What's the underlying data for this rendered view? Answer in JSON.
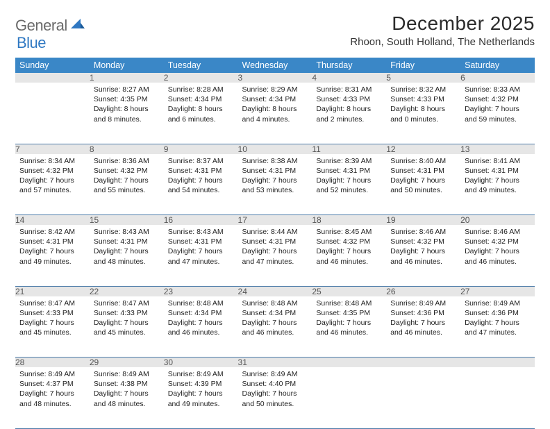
{
  "logo": {
    "word1": "General",
    "word2": "Blue"
  },
  "title": "December 2025",
  "location": "Rhoon, South Holland, The Netherlands",
  "colors": {
    "header_bg": "#3a87c7",
    "daynum_bg": "#e6e6e6",
    "row_divider": "#4a7aa8",
    "logo_gray": "#6a6a6a",
    "logo_blue": "#2f78c2"
  },
  "weekdays": [
    "Sunday",
    "Monday",
    "Tuesday",
    "Wednesday",
    "Thursday",
    "Friday",
    "Saturday"
  ],
  "weeks": [
    [
      null,
      {
        "n": "1",
        "sr": "8:27 AM",
        "ss": "4:35 PM",
        "dl": "8 hours and 8 minutes."
      },
      {
        "n": "2",
        "sr": "8:28 AM",
        "ss": "4:34 PM",
        "dl": "8 hours and 6 minutes."
      },
      {
        "n": "3",
        "sr": "8:29 AM",
        "ss": "4:34 PM",
        "dl": "8 hours and 4 minutes."
      },
      {
        "n": "4",
        "sr": "8:31 AM",
        "ss": "4:33 PM",
        "dl": "8 hours and 2 minutes."
      },
      {
        "n": "5",
        "sr": "8:32 AM",
        "ss": "4:33 PM",
        "dl": "8 hours and 0 minutes."
      },
      {
        "n": "6",
        "sr": "8:33 AM",
        "ss": "4:32 PM",
        "dl": "7 hours and 59 minutes."
      }
    ],
    [
      {
        "n": "7",
        "sr": "8:34 AM",
        "ss": "4:32 PM",
        "dl": "7 hours and 57 minutes."
      },
      {
        "n": "8",
        "sr": "8:36 AM",
        "ss": "4:32 PM",
        "dl": "7 hours and 55 minutes."
      },
      {
        "n": "9",
        "sr": "8:37 AM",
        "ss": "4:31 PM",
        "dl": "7 hours and 54 minutes."
      },
      {
        "n": "10",
        "sr": "8:38 AM",
        "ss": "4:31 PM",
        "dl": "7 hours and 53 minutes."
      },
      {
        "n": "11",
        "sr": "8:39 AM",
        "ss": "4:31 PM",
        "dl": "7 hours and 52 minutes."
      },
      {
        "n": "12",
        "sr": "8:40 AM",
        "ss": "4:31 PM",
        "dl": "7 hours and 50 minutes."
      },
      {
        "n": "13",
        "sr": "8:41 AM",
        "ss": "4:31 PM",
        "dl": "7 hours and 49 minutes."
      }
    ],
    [
      {
        "n": "14",
        "sr": "8:42 AM",
        "ss": "4:31 PM",
        "dl": "7 hours and 49 minutes."
      },
      {
        "n": "15",
        "sr": "8:43 AM",
        "ss": "4:31 PM",
        "dl": "7 hours and 48 minutes."
      },
      {
        "n": "16",
        "sr": "8:43 AM",
        "ss": "4:31 PM",
        "dl": "7 hours and 47 minutes."
      },
      {
        "n": "17",
        "sr": "8:44 AM",
        "ss": "4:31 PM",
        "dl": "7 hours and 47 minutes."
      },
      {
        "n": "18",
        "sr": "8:45 AM",
        "ss": "4:32 PM",
        "dl": "7 hours and 46 minutes."
      },
      {
        "n": "19",
        "sr": "8:46 AM",
        "ss": "4:32 PM",
        "dl": "7 hours and 46 minutes."
      },
      {
        "n": "20",
        "sr": "8:46 AM",
        "ss": "4:32 PM",
        "dl": "7 hours and 46 minutes."
      }
    ],
    [
      {
        "n": "21",
        "sr": "8:47 AM",
        "ss": "4:33 PM",
        "dl": "7 hours and 45 minutes."
      },
      {
        "n": "22",
        "sr": "8:47 AM",
        "ss": "4:33 PM",
        "dl": "7 hours and 45 minutes."
      },
      {
        "n": "23",
        "sr": "8:48 AM",
        "ss": "4:34 PM",
        "dl": "7 hours and 46 minutes."
      },
      {
        "n": "24",
        "sr": "8:48 AM",
        "ss": "4:34 PM",
        "dl": "7 hours and 46 minutes."
      },
      {
        "n": "25",
        "sr": "8:48 AM",
        "ss": "4:35 PM",
        "dl": "7 hours and 46 minutes."
      },
      {
        "n": "26",
        "sr": "8:49 AM",
        "ss": "4:36 PM",
        "dl": "7 hours and 46 minutes."
      },
      {
        "n": "27",
        "sr": "8:49 AM",
        "ss": "4:36 PM",
        "dl": "7 hours and 47 minutes."
      }
    ],
    [
      {
        "n": "28",
        "sr": "8:49 AM",
        "ss": "4:37 PM",
        "dl": "7 hours and 48 minutes."
      },
      {
        "n": "29",
        "sr": "8:49 AM",
        "ss": "4:38 PM",
        "dl": "7 hours and 48 minutes."
      },
      {
        "n": "30",
        "sr": "8:49 AM",
        "ss": "4:39 PM",
        "dl": "7 hours and 49 minutes."
      },
      {
        "n": "31",
        "sr": "8:49 AM",
        "ss": "4:40 PM",
        "dl": "7 hours and 50 minutes."
      },
      null,
      null,
      null
    ]
  ]
}
